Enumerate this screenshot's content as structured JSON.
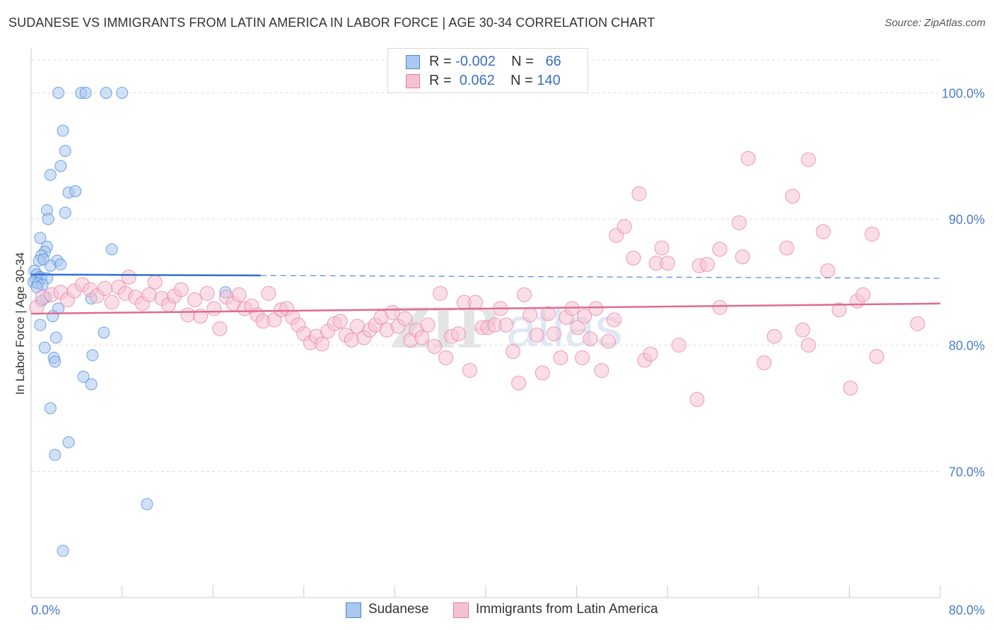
{
  "title": "SUDANESE VS IMMIGRANTS FROM LATIN AMERICA IN LABOR FORCE | AGE 30-34 CORRELATION CHART",
  "source": "Source: ZipAtlas.com",
  "watermark": {
    "part1": "ZIP",
    "part2": "atlas"
  },
  "legend": {
    "rows": [
      {
        "r_label": "R =",
        "r_value": "-0.002",
        "n_label": "N =",
        "n_value": "66",
        "color": "#4a86d8"
      },
      {
        "r_label": "R =",
        "r_value": "0.062",
        "n_label": "N =",
        "n_value": "140",
        "color": "#e87ca0"
      }
    ]
  },
  "bottom_legend": [
    {
      "label": "Sudanese",
      "color": "#4a86d8"
    },
    {
      "label": "Immigrants from Latin America",
      "color": "#e87ca0"
    }
  ],
  "chart_data": {
    "type": "scatter",
    "title": "SUDANESE VS IMMIGRANTS FROM LATIN AMERICA IN LABOR FORCE | AGE 30-34 CORRELATION CHART",
    "xlabel": "",
    "ylabel": "In Labor Force | Age 30-34",
    "xlim": [
      0,
      80
    ],
    "ylim": [
      60,
      104
    ],
    "x_tick_labels": [
      "0.0%",
      "80.0%"
    ],
    "y_ticks": [
      70,
      80,
      90,
      100
    ],
    "y_tick_labels": [
      "70.0%",
      "80.0%",
      "90.0%",
      "100.0%"
    ],
    "grid": true,
    "legend_position": "top-center",
    "series": [
      {
        "name": "Sudanese",
        "color": "#4a86d8",
        "fill": "#aac8f0",
        "trend": {
          "x": [
            0,
            80
          ],
          "y": [
            85.6,
            85.3
          ],
          "solid_until_x": 20.2
        },
        "points": [
          [
            2.4,
            100
          ],
          [
            4.4,
            100
          ],
          [
            4.8,
            100
          ],
          [
            6.6,
            100
          ],
          [
            8.0,
            100
          ],
          [
            2.8,
            97
          ],
          [
            3.0,
            95.4
          ],
          [
            2.6,
            94.2
          ],
          [
            1.7,
            93.5
          ],
          [
            3.3,
            92.1
          ],
          [
            3.9,
            92.2
          ],
          [
            1.4,
            90.7
          ],
          [
            3.0,
            90.5
          ],
          [
            1.5,
            90.0
          ],
          [
            0.8,
            88.5
          ],
          [
            1.4,
            87.8
          ],
          [
            1.2,
            87.4
          ],
          [
            7.1,
            87.6
          ],
          [
            0.9,
            87.1
          ],
          [
            0.7,
            86.7
          ],
          [
            1.1,
            86.8
          ],
          [
            2.3,
            86.7
          ],
          [
            1.7,
            86.3
          ],
          [
            2.6,
            86.4
          ],
          [
            0.3,
            85.9
          ],
          [
            0.5,
            85.6
          ],
          [
            0.8,
            85.4
          ],
          [
            0.4,
            85.2
          ],
          [
            0.9,
            85.3
          ],
          [
            1.4,
            85.3
          ],
          [
            0.2,
            85.0
          ],
          [
            0.6,
            84.9
          ],
          [
            1.0,
            84.8
          ],
          [
            0.5,
            84.6
          ],
          [
            1.3,
            83.8
          ],
          [
            0.9,
            83.5
          ],
          [
            5.3,
            83.7
          ],
          [
            17.1,
            84.2
          ],
          [
            2.4,
            82.9
          ],
          [
            1.9,
            82.3
          ],
          [
            0.8,
            81.6
          ],
          [
            6.4,
            81.0
          ],
          [
            2.2,
            80.6
          ],
          [
            1.2,
            79.8
          ],
          [
            5.4,
            79.2
          ],
          [
            2.0,
            79.0
          ],
          [
            2.1,
            78.7
          ],
          [
            4.6,
            77.5
          ],
          [
            5.3,
            76.9
          ],
          [
            1.7,
            75.0
          ],
          [
            3.3,
            72.3
          ],
          [
            2.1,
            71.3
          ],
          [
            10.2,
            67.4
          ],
          [
            2.8,
            63.7
          ]
        ]
      },
      {
        "name": "Immigrants from Latin America",
        "color": "#e87ca0",
        "fill": "#f6c2d3",
        "trend": {
          "x": [
            0,
            80
          ],
          "y": [
            82.5,
            83.3
          ]
        },
        "points": [
          [
            0.5,
            83.0
          ],
          [
            1.0,
            83.8
          ],
          [
            1.8,
            84.0
          ],
          [
            2.6,
            84.2
          ],
          [
            3.2,
            83.6
          ],
          [
            3.8,
            84.3
          ],
          [
            4.5,
            84.8
          ],
          [
            5.2,
            84.4
          ],
          [
            5.8,
            83.9
          ],
          [
            6.5,
            84.5
          ],
          [
            7.1,
            83.4
          ],
          [
            7.7,
            84.6
          ],
          [
            8.3,
            84.1
          ],
          [
            8.6,
            85.4
          ],
          [
            9.2,
            83.8
          ],
          [
            9.8,
            83.3
          ],
          [
            10.4,
            84.0
          ],
          [
            10.9,
            85.0
          ],
          [
            11.5,
            83.7
          ],
          [
            12.1,
            83.2
          ],
          [
            12.6,
            83.9
          ],
          [
            13.2,
            84.4
          ],
          [
            13.8,
            82.4
          ],
          [
            14.4,
            83.6
          ],
          [
            14.9,
            82.3
          ],
          [
            15.5,
            84.1
          ],
          [
            16.1,
            82.9
          ],
          [
            16.6,
            81.3
          ],
          [
            17.2,
            83.8
          ],
          [
            17.8,
            83.3
          ],
          [
            18.3,
            84.0
          ],
          [
            18.8,
            82.9
          ],
          [
            19.4,
            83.1
          ],
          [
            19.9,
            82.4
          ],
          [
            20.4,
            81.9
          ],
          [
            20.9,
            84.1
          ],
          [
            21.4,
            82.0
          ],
          [
            22.0,
            82.8
          ],
          [
            22.5,
            82.9
          ],
          [
            23.0,
            82.2
          ],
          [
            23.5,
            81.6
          ],
          [
            24.0,
            80.9
          ],
          [
            24.6,
            80.2
          ],
          [
            25.1,
            80.7
          ],
          [
            25.6,
            80.1
          ],
          [
            26.1,
            81.1
          ],
          [
            26.7,
            81.7
          ],
          [
            27.2,
            81.9
          ],
          [
            27.7,
            80.8
          ],
          [
            28.2,
            80.4
          ],
          [
            28.7,
            81.5
          ],
          [
            29.3,
            80.6
          ],
          [
            29.8,
            81.2
          ],
          [
            30.3,
            81.6
          ],
          [
            30.8,
            82.2
          ],
          [
            31.3,
            81.2
          ],
          [
            31.8,
            82.6
          ],
          [
            32.3,
            81.5
          ],
          [
            32.9,
            82.1
          ],
          [
            33.4,
            80.4
          ],
          [
            33.9,
            81.2
          ],
          [
            34.4,
            80.6
          ],
          [
            34.9,
            81.6
          ],
          [
            35.5,
            79.9
          ],
          [
            36.0,
            84.1
          ],
          [
            36.5,
            79.0
          ],
          [
            37.0,
            80.7
          ],
          [
            37.6,
            80.9
          ],
          [
            38.1,
            83.4
          ],
          [
            38.6,
            78.0
          ],
          [
            39.1,
            83.4
          ],
          [
            39.7,
            81.4
          ],
          [
            40.2,
            81.4
          ],
          [
            40.8,
            81.6
          ],
          [
            41.3,
            82.9
          ],
          [
            41.8,
            81.6
          ],
          [
            42.4,
            79.5
          ],
          [
            42.9,
            77.0
          ],
          [
            43.4,
            84.0
          ],
          [
            43.9,
            82.4
          ],
          [
            44.5,
            80.8
          ],
          [
            45.0,
            77.8
          ],
          [
            45.5,
            82.5
          ],
          [
            46.0,
            80.9
          ],
          [
            46.6,
            79.0
          ],
          [
            47.1,
            82.2
          ],
          [
            47.6,
            82.9
          ],
          [
            48.1,
            81.4
          ],
          [
            48.7,
            82.3
          ],
          [
            49.2,
            80.5
          ],
          [
            49.7,
            82.9
          ],
          [
            50.2,
            78.0
          ],
          [
            50.8,
            80.3
          ],
          [
            51.3,
            82.0
          ],
          [
            51.5,
            88.7
          ],
          [
            52.2,
            89.4
          ],
          [
            53.0,
            86.9
          ],
          [
            53.5,
            92.0
          ],
          [
            54.0,
            78.8
          ],
          [
            54.5,
            79.3
          ],
          [
            55.0,
            86.5
          ],
          [
            55.5,
            87.7
          ],
          [
            56.0,
            86.5
          ],
          [
            57.0,
            80.0
          ],
          [
            58.6,
            75.7
          ],
          [
            58.8,
            86.3
          ],
          [
            59.5,
            86.4
          ],
          [
            60.6,
            87.6
          ],
          [
            60.6,
            83.0
          ],
          [
            62.3,
            89.7
          ],
          [
            62.6,
            87.0
          ],
          [
            63.1,
            94.8
          ],
          [
            64.5,
            78.6
          ],
          [
            65.4,
            80.7
          ],
          [
            66.5,
            87.7
          ],
          [
            67.0,
            91.8
          ],
          [
            67.9,
            81.2
          ],
          [
            68.4,
            80.0
          ],
          [
            68.4,
            94.7
          ],
          [
            69.7,
            89.0
          ],
          [
            70.1,
            85.9
          ],
          [
            71.1,
            82.8
          ],
          [
            72.1,
            76.6
          ],
          [
            72.7,
            83.5
          ],
          [
            73.2,
            84.0
          ],
          [
            74.0,
            88.8
          ],
          [
            74.4,
            79.1
          ],
          [
            78.0,
            81.7
          ],
          [
            48.5,
            79.0
          ]
        ]
      }
    ]
  }
}
